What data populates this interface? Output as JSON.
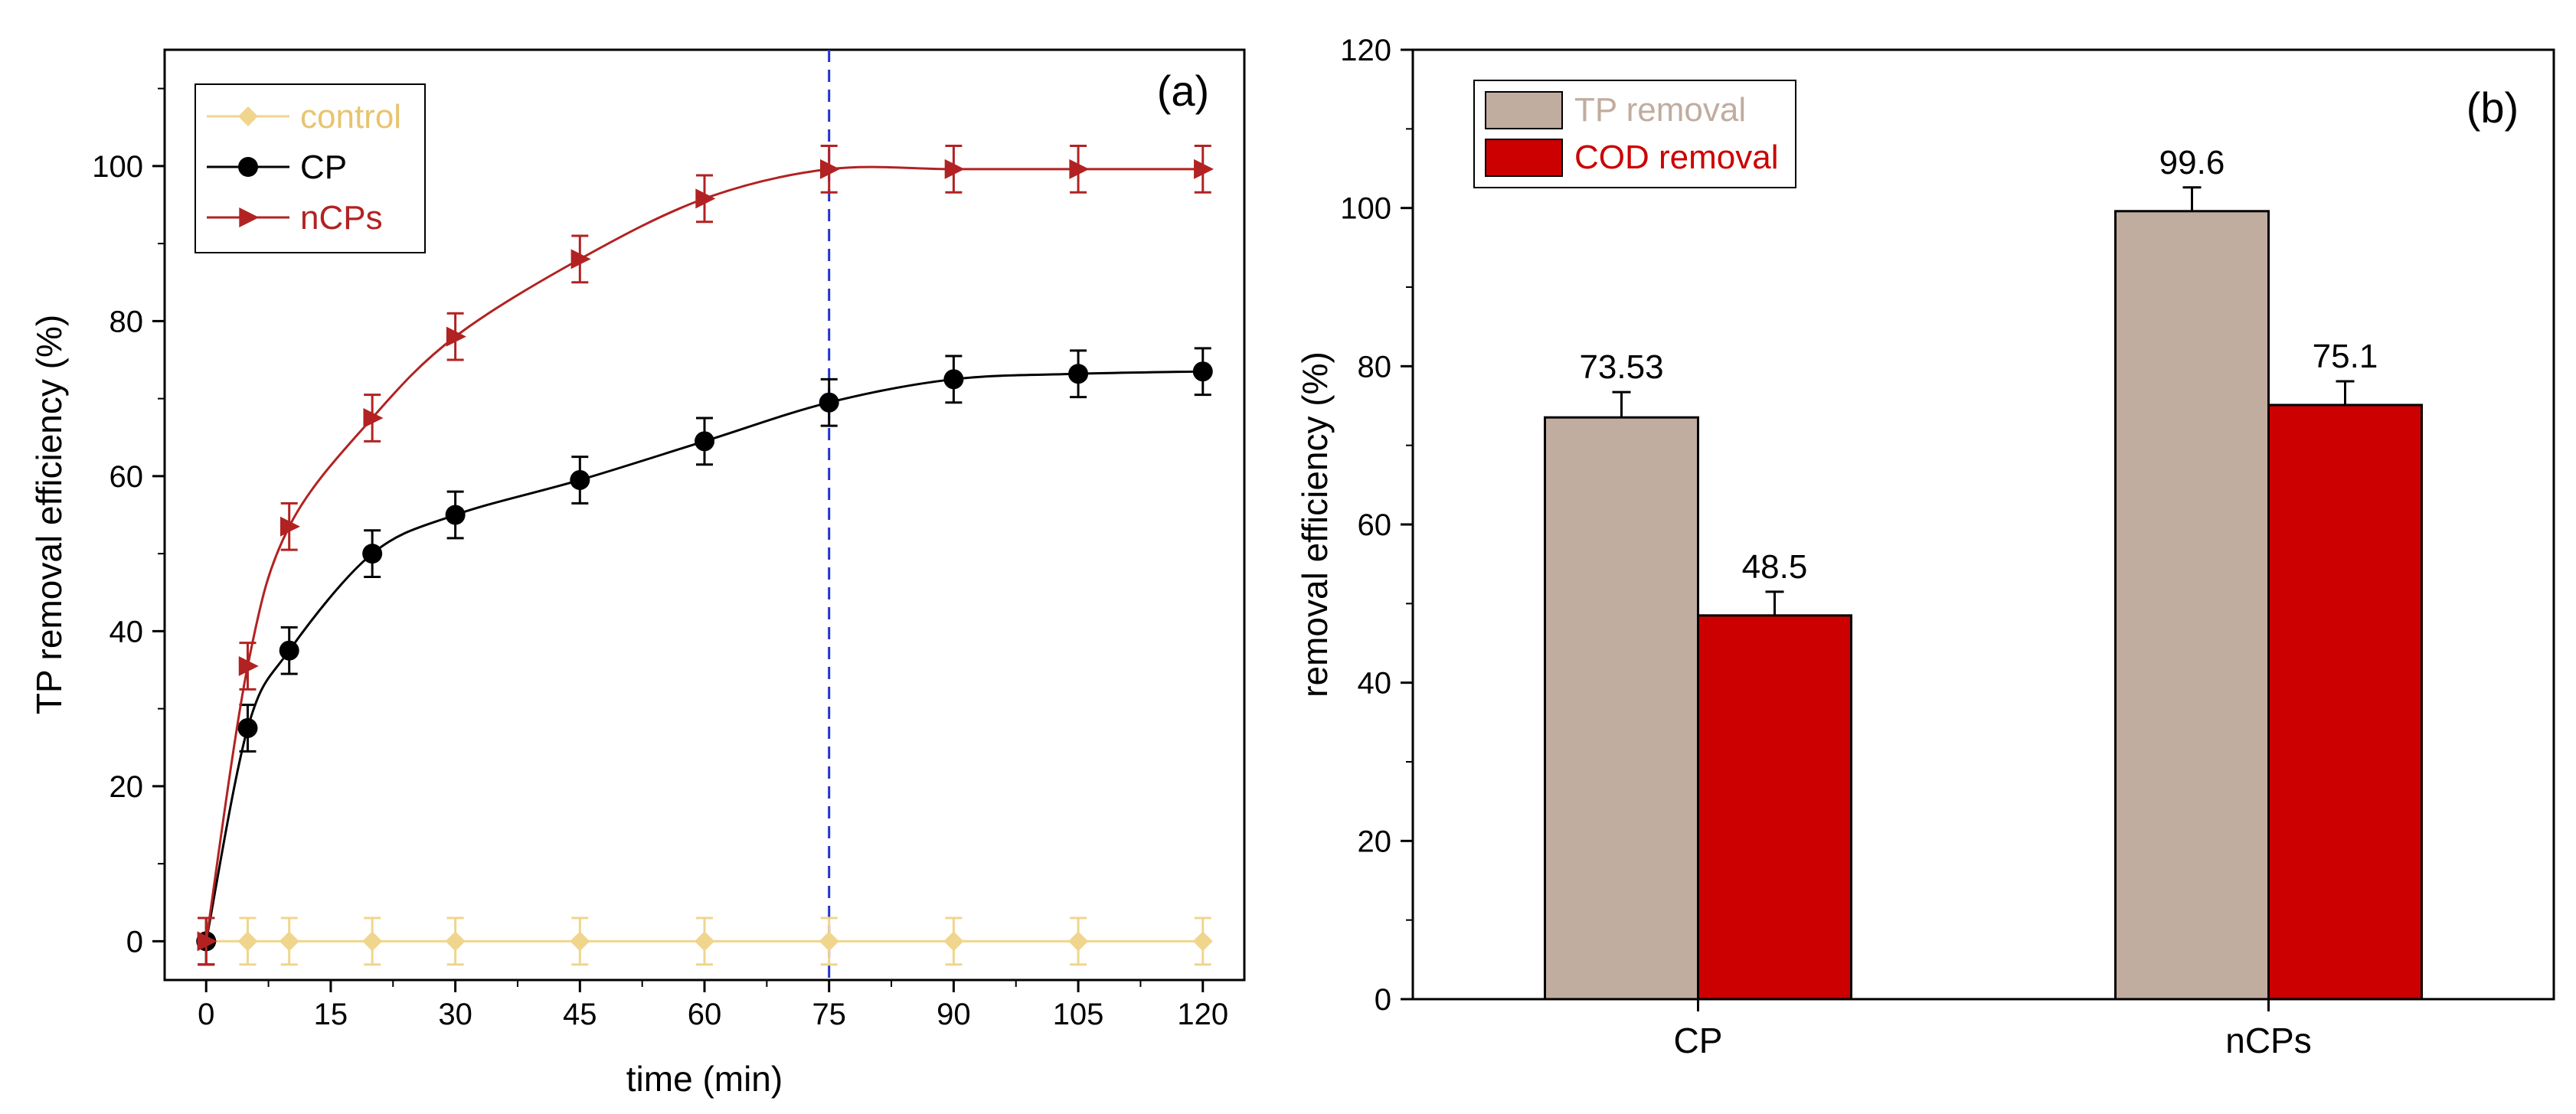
{
  "chart_data": [
    {
      "panel": "(a)",
      "type": "line",
      "xlabel": "time (min)",
      "ylabel": "TP removal efficiency  (%)",
      "xlim": [
        -5,
        125
      ],
      "ylim": [
        -5,
        115
      ],
      "x_ticks": [
        "0",
        "15",
        "30",
        "45",
        "60",
        "75",
        "90",
        "105",
        "120"
      ],
      "y_ticks": [
        "0",
        "20",
        "40",
        "60",
        "80",
        "100"
      ],
      "x": [
        0,
        5,
        10,
        20,
        30,
        45,
        60,
        75,
        90,
        105,
        120
      ],
      "reference_line_x": 75,
      "reference_line_color": "#2233cc",
      "legend_position": "top-left",
      "series": [
        {
          "name": "control",
          "color": "#f0d58c",
          "marker": "diamond",
          "values": [
            0,
            0,
            0,
            0,
            0,
            0,
            0,
            0,
            0,
            0,
            0
          ],
          "errors": [
            3,
            3,
            3,
            3,
            3,
            3,
            3,
            3,
            3,
            3,
            3
          ]
        },
        {
          "name": "CP",
          "color": "#000000",
          "marker": "circle",
          "values": [
            0,
            27.5,
            37.5,
            50,
            55,
            59.5,
            64.5,
            69.5,
            72.5,
            73.2,
            73.5
          ],
          "errors": [
            3,
            3,
            3,
            3,
            3,
            3,
            3,
            3,
            3,
            3,
            3
          ]
        },
        {
          "name": "nCPs",
          "color": "#b22222",
          "marker": "triangle-right",
          "values": [
            0,
            35.5,
            53.5,
            67.5,
            78,
            88,
            95.8,
            99.6,
            99.6,
            99.6,
            99.6
          ],
          "errors": [
            3,
            3,
            3,
            3,
            3,
            3,
            3,
            3,
            3,
            3,
            3
          ]
        }
      ]
    },
    {
      "panel": "(b)",
      "type": "bar",
      "xlabel": "",
      "ylabel": "removal efficiency (%)",
      "ylim": [
        0,
        120
      ],
      "y_ticks": [
        "0",
        "20",
        "40",
        "60",
        "80",
        "100",
        "120"
      ],
      "categories": [
        "CP",
        "nCPs"
      ],
      "legend_position": "top-left",
      "series": [
        {
          "name": "TP removal",
          "color": "#c1aca0",
          "values": [
            73.53,
            99.6
          ],
          "labels": [
            "73.53",
            "99.6"
          ],
          "errors": [
            3.2,
            3.0
          ]
        },
        {
          "name": "COD removal",
          "color": "#cc0000",
          "values": [
            48.5,
            75.1
          ],
          "labels": [
            "48.5",
            "75.1"
          ],
          "errors": [
            3.0,
            3.0
          ]
        }
      ]
    }
  ]
}
